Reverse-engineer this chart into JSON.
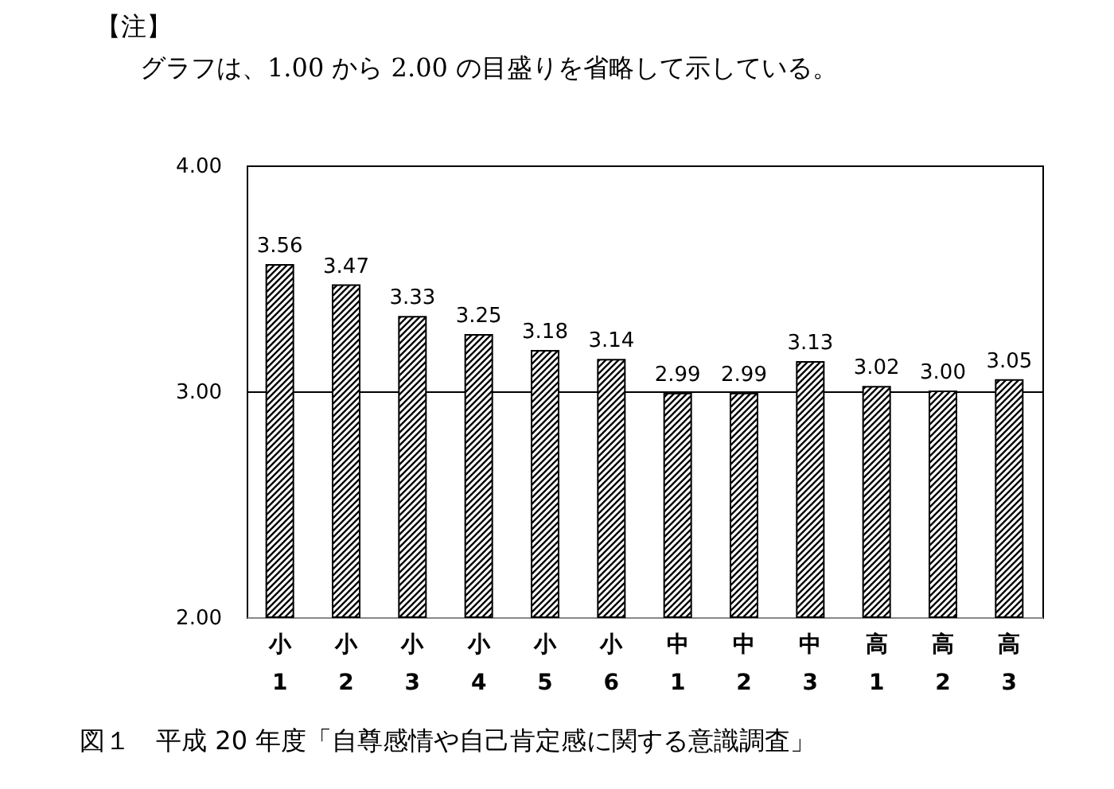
{
  "chart_data": {
    "type": "bar",
    "title": "図１　平成 20 年度「自尊感情や自己肯定感に関する意識調査」",
    "annotations": [
      "【注】",
      "グラフは、1.00 から 2.00 の目盛りを省略して示している。"
    ],
    "categories": [
      "小\n1",
      "小\n2",
      "小\n3",
      "小\n4",
      "小\n5",
      "小\n6",
      "中\n1",
      "中\n2",
      "中\n3",
      "高\n1",
      "高\n2",
      "高\n3"
    ],
    "values": [
      3.56,
      3.47,
      3.33,
      3.25,
      3.18,
      3.14,
      2.99,
      2.99,
      3.13,
      3.02,
      3.0,
      3.05
    ],
    "color": "#000000",
    "value_labels": [
      "3.56",
      "3.47",
      "3.33",
      "3.25",
      "3.18",
      "3.14",
      "2.99",
      "2.99",
      "3.13",
      "3.02",
      "3.00",
      "3.05"
    ],
    "grid": "y",
    "ylim": [
      2,
      4
    ],
    "yticks": [
      {
        "value": 2,
        "label": "2.00"
      },
      {
        "value": 3,
        "label": "3.00"
      },
      {
        "value": 4,
        "label": "4.00"
      }
    ]
  }
}
